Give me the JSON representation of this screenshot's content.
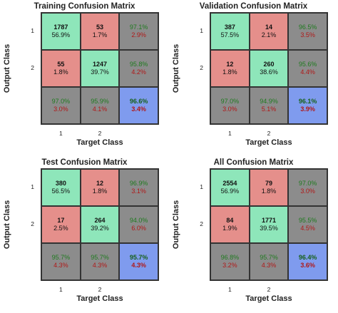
{
  "chart_data": [
    {
      "type": "heatmap",
      "title": "Training Confusion Matrix",
      "xlabel": "Target Class",
      "ylabel": "Output Class",
      "xticks": [
        "1",
        "2"
      ],
      "yticks": [
        "1",
        "2"
      ],
      "cells": [
        [
          {
            "t1": "1787",
            "t2": "56.9%",
            "kind": "green"
          },
          {
            "t1": "53",
            "t2": "1.7%",
            "kind": "red"
          },
          {
            "t1": "97.1%",
            "t2": "2.9%",
            "kind": "gray"
          }
        ],
        [
          {
            "t1": "55",
            "t2": "1.8%",
            "kind": "red"
          },
          {
            "t1": "1247",
            "t2": "39.7%",
            "kind": "green"
          },
          {
            "t1": "95.8%",
            "t2": "4.2%",
            "kind": "gray"
          }
        ],
        [
          {
            "t1": "97.0%",
            "t2": "3.0%",
            "kind": "gray"
          },
          {
            "t1": "95.9%",
            "t2": "4.1%",
            "kind": "gray"
          },
          {
            "t1": "96.6%",
            "t2": "3.4%",
            "kind": "blue"
          }
        ]
      ]
    },
    {
      "type": "heatmap",
      "title": "Validation Confusion Matrix",
      "xlabel": "Target Class",
      "ylabel": "Output Class",
      "xticks": [
        "1",
        "2"
      ],
      "yticks": [
        "1",
        "2"
      ],
      "cells": [
        [
          {
            "t1": "387",
            "t2": "57.5%",
            "kind": "green"
          },
          {
            "t1": "14",
            "t2": "2.1%",
            "kind": "red"
          },
          {
            "t1": "96.5%",
            "t2": "3.5%",
            "kind": "gray"
          }
        ],
        [
          {
            "t1": "12",
            "t2": "1.8%",
            "kind": "red"
          },
          {
            "t1": "260",
            "t2": "38.6%",
            "kind": "green"
          },
          {
            "t1": "95.6%",
            "t2": "4.4%",
            "kind": "gray"
          }
        ],
        [
          {
            "t1": "97.0%",
            "t2": "3.0%",
            "kind": "gray"
          },
          {
            "t1": "94.9%",
            "t2": "5.1%",
            "kind": "gray"
          },
          {
            "t1": "96.1%",
            "t2": "3.9%",
            "kind": "blue"
          }
        ]
      ]
    },
    {
      "type": "heatmap",
      "title": "Test Confusion Matrix",
      "xlabel": "Target Class",
      "ylabel": "Output Class",
      "xticks": [
        "1",
        "2"
      ],
      "yticks": [
        "1",
        "2"
      ],
      "cells": [
        [
          {
            "t1": "380",
            "t2": "56.5%",
            "kind": "green"
          },
          {
            "t1": "12",
            "t2": "1.8%",
            "kind": "red"
          },
          {
            "t1": "96.9%",
            "t2": "3.1%",
            "kind": "gray"
          }
        ],
        [
          {
            "t1": "17",
            "t2": "2.5%",
            "kind": "red"
          },
          {
            "t1": "264",
            "t2": "39.2%",
            "kind": "green"
          },
          {
            "t1": "94.0%",
            "t2": "6.0%",
            "kind": "gray"
          }
        ],
        [
          {
            "t1": "95.7%",
            "t2": "4.3%",
            "kind": "gray"
          },
          {
            "t1": "95.7%",
            "t2": "4.3%",
            "kind": "gray"
          },
          {
            "t1": "95.7%",
            "t2": "4.3%",
            "kind": "blue"
          }
        ]
      ]
    },
    {
      "type": "heatmap",
      "title": "All Confusion Matrix",
      "xlabel": "Target Class",
      "ylabel": "Output Class",
      "xticks": [
        "1",
        "2"
      ],
      "yticks": [
        "1",
        "2"
      ],
      "cells": [
        [
          {
            "t1": "2554",
            "t2": "56.9%",
            "kind": "green"
          },
          {
            "t1": "79",
            "t2": "1.8%",
            "kind": "red"
          },
          {
            "t1": "97.0%",
            "t2": "3.0%",
            "kind": "gray"
          }
        ],
        [
          {
            "t1": "84",
            "t2": "1.9%",
            "kind": "red"
          },
          {
            "t1": "1771",
            "t2": "39.5%",
            "kind": "green"
          },
          {
            "t1": "95.5%",
            "t2": "4.5%",
            "kind": "gray"
          }
        ],
        [
          {
            "t1": "96.8%",
            "t2": "3.2%",
            "kind": "gray"
          },
          {
            "t1": "95.7%",
            "t2": "4.3%",
            "kind": "gray"
          },
          {
            "t1": "96.4%",
            "t2": "3.6%",
            "kind": "blue"
          }
        ]
      ]
    }
  ],
  "colors": {
    "correct": "#8ee6ba",
    "incorrect": "#e58f8b",
    "summary": "#8c8c8c",
    "overall": "#7f9bee",
    "accuracy_text": "#1f7a1f",
    "error_text": "#b01818"
  }
}
